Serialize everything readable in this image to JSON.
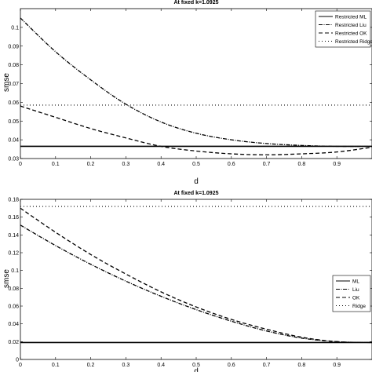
{
  "chart_data": [
    {
      "type": "line",
      "title": "At fixed k=1.0925",
      "xlabel": "d",
      "ylabel": "smse",
      "xlim": [
        0,
        1
      ],
      "ylim": [
        0.03,
        0.11
      ],
      "xticks": [
        "0",
        "0.1",
        "0.2",
        "0.3",
        "0.4",
        "0.5",
        "0.6",
        "0.7",
        "0.8",
        "0.9"
      ],
      "yticks": [
        "0.03",
        "0.04",
        "0.05",
        "0.06",
        "0.07",
        "0.08",
        "0.09",
        "0.1"
      ],
      "legend_position": "top-right",
      "x": [
        0,
        0.1,
        0.2,
        0.3,
        0.4,
        0.5,
        0.6,
        0.7,
        0.8,
        0.9,
        1.0
      ],
      "series": [
        {
          "name": "Restricted ML",
          "style": "solid",
          "values": [
            0.0365,
            0.0365,
            0.0365,
            0.0365,
            0.0365,
            0.0365,
            0.0365,
            0.0365,
            0.0365,
            0.0365,
            0.0365
          ]
        },
        {
          "name": "Restricted Liu",
          "style": "dashdot",
          "values": [
            0.105,
            0.087,
            0.072,
            0.059,
            0.0495,
            0.0435,
            0.04,
            0.038,
            0.037,
            0.0365,
            0.0365
          ]
        },
        {
          "name": "Restricted OK",
          "style": "dashed",
          "values": [
            0.058,
            0.052,
            0.046,
            0.041,
            0.0365,
            0.034,
            0.0325,
            0.032,
            0.0325,
            0.0335,
            0.036
          ]
        },
        {
          "name": "Restricted Ridge",
          "style": "dotted",
          "values": [
            0.0585,
            0.0585,
            0.0585,
            0.0585,
            0.0585,
            0.0585,
            0.0585,
            0.0585,
            0.0585,
            0.0585,
            0.0585
          ]
        }
      ]
    },
    {
      "type": "line",
      "title": "At fixed k=1.0925",
      "xlabel": "d",
      "ylabel": "smse",
      "xlim": [
        0,
        1
      ],
      "ylim": [
        0,
        0.18
      ],
      "xticks": [
        "0",
        "0.1",
        "0.2",
        "0.3",
        "0.4",
        "0.5",
        "0.6",
        "0.7",
        "0.8",
        "0.9"
      ],
      "yticks": [
        "0",
        "0.02",
        "0.04",
        "0.06",
        "0.08",
        "0.1",
        "0.12",
        "0.14",
        "0.16",
        "0.18"
      ],
      "legend_position": "right",
      "x": [
        0,
        0.1,
        0.2,
        0.3,
        0.4,
        0.5,
        0.6,
        0.7,
        0.8,
        0.9,
        1.0
      ],
      "series": [
        {
          "name": "ML",
          "style": "solid",
          "values": [
            0.019,
            0.019,
            0.019,
            0.019,
            0.019,
            0.019,
            0.019,
            0.019,
            0.019,
            0.019,
            0.019
          ]
        },
        {
          "name": "Liu",
          "style": "dashdot",
          "values": [
            0.151,
            0.128,
            0.107,
            0.088,
            0.071,
            0.056,
            0.043,
            0.032,
            0.024,
            0.02,
            0.019
          ]
        },
        {
          "name": "OK",
          "style": "dashed",
          "values": [
            0.17,
            0.143,
            0.118,
            0.096,
            0.076,
            0.059,
            0.045,
            0.034,
            0.025,
            0.02,
            0.019
          ]
        },
        {
          "name": "Ridge",
          "style": "dotted",
          "values": [
            0.172,
            0.172,
            0.172,
            0.172,
            0.172,
            0.172,
            0.172,
            0.172,
            0.172,
            0.172,
            0.172
          ]
        }
      ]
    }
  ]
}
